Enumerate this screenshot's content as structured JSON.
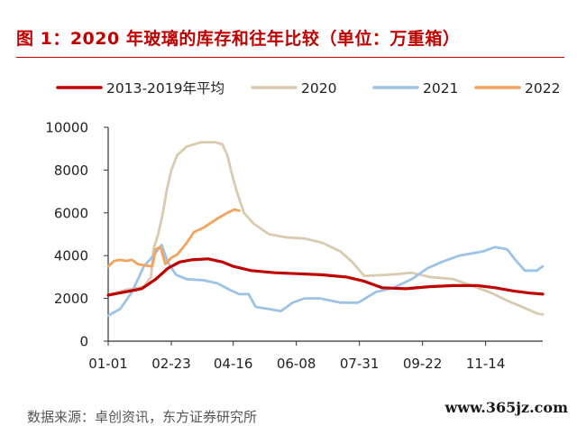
{
  "header": {
    "title": "图 1：2020 年玻璃的库存和往年比较（单位：万重箱）"
  },
  "source": "数据来源：卓创资讯，东方证券研究所",
  "watermark": "www.365jz.com",
  "chart_data": {
    "type": "line",
    "xlabel": "",
    "ylabel": "",
    "ylim": [
      0,
      10000
    ],
    "yticks": [
      0,
      2000,
      4000,
      6000,
      8000,
      10000
    ],
    "ytick_labels": [
      "0",
      "2000",
      "4000",
      "6000",
      "8000",
      "10000"
    ],
    "xlim": [
      0,
      365
    ],
    "xticks": [
      0,
      53,
      105,
      158,
      211,
      264,
      317
    ],
    "xtick_labels": [
      "01-01",
      "02-23",
      "04-16",
      "06-08",
      "07-31",
      "09-22",
      "11-14"
    ],
    "grid": false,
    "legend": "top",
    "series": [
      {
        "name": "2013-2019年平均",
        "color": "#c00000",
        "width": 3.2,
        "points": [
          [
            0,
            2150
          ],
          [
            14,
            2300
          ],
          [
            28,
            2450
          ],
          [
            40,
            2900
          ],
          [
            50,
            3400
          ],
          [
            60,
            3700
          ],
          [
            70,
            3800
          ],
          [
            84,
            3850
          ],
          [
            96,
            3700
          ],
          [
            105,
            3500
          ],
          [
            120,
            3300
          ],
          [
            140,
            3200
          ],
          [
            160,
            3150
          ],
          [
            180,
            3100
          ],
          [
            200,
            3000
          ],
          [
            215,
            2800
          ],
          [
            230,
            2500
          ],
          [
            250,
            2450
          ],
          [
            270,
            2550
          ],
          [
            290,
            2600
          ],
          [
            310,
            2600
          ],
          [
            325,
            2500
          ],
          [
            340,
            2350
          ],
          [
            354,
            2250
          ],
          [
            365,
            2200
          ]
        ]
      },
      {
        "name": "2020",
        "color": "#d9cbb0",
        "width": 2.8,
        "points": [
          [
            0,
            2150
          ],
          [
            15,
            2400
          ],
          [
            30,
            2550
          ],
          [
            36,
            3000
          ],
          [
            38,
            4300
          ],
          [
            42,
            5000
          ],
          [
            46,
            6000
          ],
          [
            49,
            7000
          ],
          [
            53,
            8000
          ],
          [
            58,
            8700
          ],
          [
            66,
            9100
          ],
          [
            78,
            9300
          ],
          [
            90,
            9300
          ],
          [
            96,
            9200
          ],
          [
            100,
            8700
          ],
          [
            104,
            7800
          ],
          [
            108,
            7000
          ],
          [
            114,
            6000
          ],
          [
            122,
            5500
          ],
          [
            135,
            5000
          ],
          [
            150,
            4850
          ],
          [
            165,
            4800
          ],
          [
            180,
            4600
          ],
          [
            195,
            4200
          ],
          [
            205,
            3700
          ],
          [
            215,
            3050
          ],
          [
            235,
            3100
          ],
          [
            255,
            3200
          ],
          [
            270,
            3000
          ],
          [
            290,
            2900
          ],
          [
            305,
            2600
          ],
          [
            320,
            2300
          ],
          [
            335,
            1900
          ],
          [
            350,
            1550
          ],
          [
            360,
            1300
          ],
          [
            365,
            1250
          ]
        ]
      },
      {
        "name": "2021",
        "color": "#9dc3e6",
        "width": 2.8,
        "points": [
          [
            0,
            1200
          ],
          [
            10,
            1500
          ],
          [
            20,
            2300
          ],
          [
            30,
            3500
          ],
          [
            38,
            4000
          ],
          [
            45,
            4500
          ],
          [
            50,
            3700
          ],
          [
            57,
            3100
          ],
          [
            66,
            2900
          ],
          [
            80,
            2850
          ],
          [
            92,
            2700
          ],
          [
            102,
            2400
          ],
          [
            110,
            2200
          ],
          [
            118,
            2200
          ],
          [
            124,
            1600
          ],
          [
            135,
            1500
          ],
          [
            145,
            1400
          ],
          [
            155,
            1800
          ],
          [
            165,
            2000
          ],
          [
            178,
            2000
          ],
          [
            195,
            1800
          ],
          [
            210,
            1800
          ],
          [
            225,
            2300
          ],
          [
            240,
            2500
          ],
          [
            255,
            2900
          ],
          [
            268,
            3400
          ],
          [
            280,
            3700
          ],
          [
            295,
            4000
          ],
          [
            315,
            4200
          ],
          [
            325,
            4400
          ],
          [
            335,
            4300
          ],
          [
            342,
            3800
          ],
          [
            350,
            3300
          ],
          [
            360,
            3300
          ],
          [
            365,
            3500
          ]
        ]
      },
      {
        "name": "2022",
        "color": "#f5a35c",
        "width": 2.8,
        "points": [
          [
            0,
            3500
          ],
          [
            5,
            3750
          ],
          [
            10,
            3800
          ],
          [
            15,
            3750
          ],
          [
            20,
            3800
          ],
          [
            25,
            3600
          ],
          [
            30,
            3550
          ],
          [
            37,
            3500
          ],
          [
            40,
            4300
          ],
          [
            44,
            4400
          ],
          [
            48,
            3600
          ],
          [
            53,
            3900
          ],
          [
            58,
            4050
          ],
          [
            66,
            4600
          ],
          [
            72,
            5100
          ],
          [
            80,
            5300
          ],
          [
            88,
            5600
          ],
          [
            94,
            5800
          ],
          [
            100,
            6000
          ],
          [
            106,
            6150
          ],
          [
            110,
            6100
          ]
        ]
      }
    ]
  }
}
